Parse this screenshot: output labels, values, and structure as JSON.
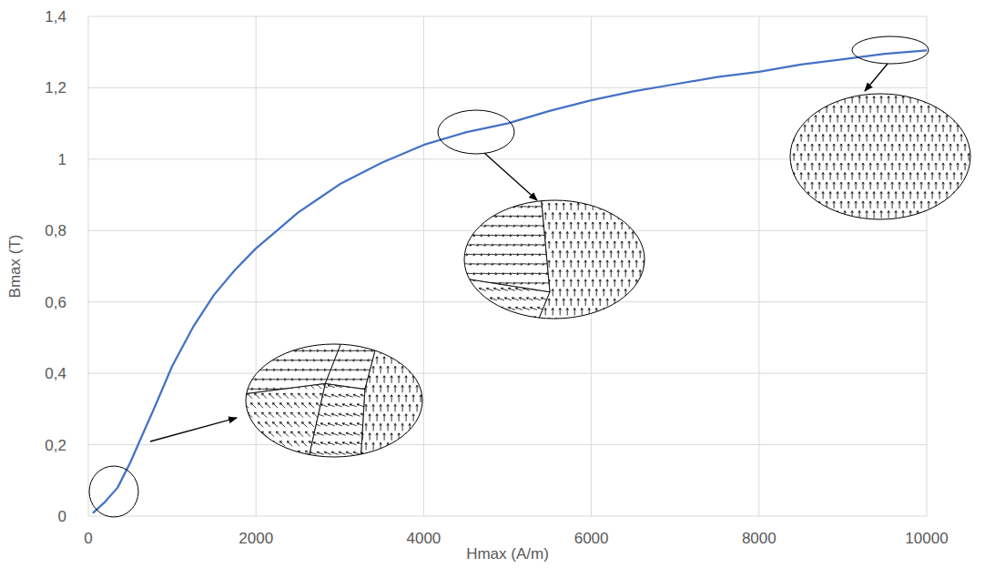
{
  "chart_data": {
    "type": "line",
    "x_label": "Hmax (A/m)",
    "y_label": "Bmax (T)",
    "x": [
      60,
      200,
      350,
      500,
      650,
      800,
      1000,
      1250,
      1500,
      1750,
      2000,
      2250,
      2500,
      2750,
      3000,
      3500,
      4000,
      4500,
      5000,
      5500,
      6000,
      6500,
      7000,
      7500,
      8000,
      8500,
      9000,
      9500,
      10000
    ],
    "values": [
      0.01,
      0.04,
      0.08,
      0.15,
      0.23,
      0.31,
      0.42,
      0.53,
      0.62,
      0.69,
      0.75,
      0.8,
      0.85,
      0.89,
      0.93,
      0.99,
      1.04,
      1.075,
      1.1,
      1.135,
      1.165,
      1.19,
      1.21,
      1.23,
      1.245,
      1.265,
      1.28,
      1.295,
      1.305
    ],
    "color": "#4472c4",
    "xlim": [
      0,
      10000
    ],
    "ylim": [
      0,
      1.4
    ],
    "xticks": [
      0,
      2000,
      4000,
      6000,
      8000,
      10000
    ],
    "yticks": [
      0,
      {
        "value": 0.2,
        "label": "0,2"
      },
      {
        "value": 0.4,
        "label": "0,4"
      },
      {
        "value": 0.6,
        "label": "0,6"
      },
      {
        "value": 0.8,
        "label": "0,8"
      },
      1,
      {
        "value": 1.2,
        "label": "1,2"
      },
      {
        "value": 1.4,
        "label": "1,4"
      }
    ],
    "grid": true
  }
}
